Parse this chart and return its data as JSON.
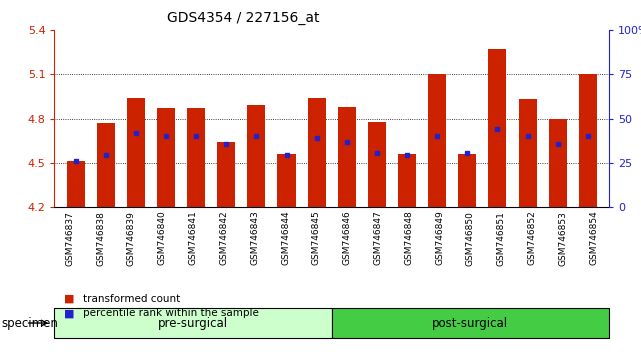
{
  "title": "GDS4354 / 227156_at",
  "samples": [
    "GSM746837",
    "GSM746838",
    "GSM746839",
    "GSM746840",
    "GSM746841",
    "GSM746842",
    "GSM746843",
    "GSM746844",
    "GSM746845",
    "GSM746846",
    "GSM746847",
    "GSM746848",
    "GSM746849",
    "GSM746850",
    "GSM746851",
    "GSM746852",
    "GSM746853",
    "GSM746854"
  ],
  "bar_values": [
    4.51,
    4.77,
    4.94,
    4.87,
    4.87,
    4.64,
    4.89,
    4.56,
    4.94,
    4.88,
    4.78,
    4.56,
    5.1,
    4.56,
    5.27,
    4.93,
    4.8,
    5.1
  ],
  "percentile_values": [
    4.51,
    4.55,
    4.7,
    4.68,
    4.68,
    4.63,
    4.68,
    4.55,
    4.67,
    4.64,
    4.57,
    4.55,
    4.68,
    4.57,
    4.73,
    4.68,
    4.63,
    4.68
  ],
  "ymin": 4.2,
  "ymax": 5.4,
  "y_ticks_left": [
    4.2,
    4.5,
    4.8,
    5.1,
    5.4
  ],
  "y_ticks_right_labels": [
    "0",
    "25",
    "50",
    "75",
    "100%"
  ],
  "bar_color": "#cc2200",
  "marker_color": "#2222cc",
  "pre_surgical_count": 9,
  "pre_surgical_label": "pre-surgical",
  "post_surgical_label": "post-surgical",
  "pre_surgical_color": "#ccffcc",
  "post_surgical_color": "#44cc44",
  "specimen_label": "specimen",
  "legend_bar_label": "transformed count",
  "legend_marker_label": "percentile rank within the sample",
  "bar_width": 0.6,
  "background_plot": "#ffffff",
  "title_fontsize": 10,
  "tick_label_fontsize": 6.5,
  "axis_label_color_left": "#cc2200",
  "axis_label_color_right": "#2222cc"
}
